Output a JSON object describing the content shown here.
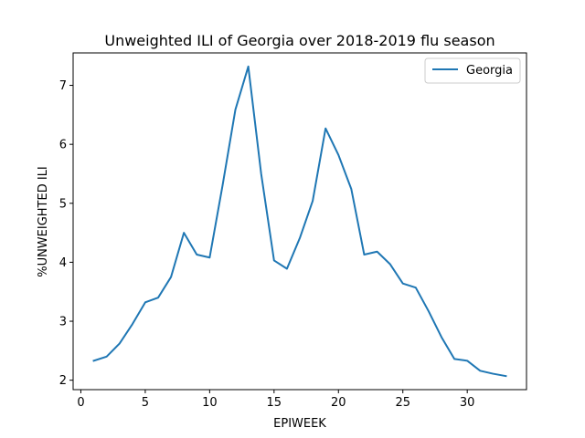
{
  "chart_data": {
    "type": "line",
    "title": "Unweighted ILI of Georgia over 2018-2019 flu season",
    "xlabel": "EPIWEEK",
    "ylabel": "%UNWEIGHTED ILI",
    "xlim": [
      -0.6,
      34.6
    ],
    "ylim": [
      1.84,
      7.55
    ],
    "xticks": [
      0,
      5,
      10,
      15,
      20,
      25,
      30
    ],
    "yticks": [
      2,
      3,
      4,
      5,
      6,
      7
    ],
    "grid": false,
    "legend_position": "top-right",
    "series": [
      {
        "name": "Georgia",
        "color": "#1f77b4",
        "x": [
          1,
          2,
          3,
          4,
          5,
          6,
          7,
          8,
          9,
          10,
          11,
          12,
          13,
          14,
          15,
          16,
          17,
          18,
          19,
          20,
          21,
          22,
          23,
          24,
          25,
          26,
          27,
          28,
          29,
          30,
          31,
          32,
          33
        ],
        "y": [
          2.33,
          2.4,
          2.62,
          2.95,
          3.32,
          3.4,
          3.75,
          4.5,
          4.13,
          4.08,
          5.3,
          6.59,
          7.32,
          5.5,
          4.03,
          3.89,
          4.41,
          5.04,
          6.27,
          5.82,
          5.24,
          4.13,
          4.18,
          3.97,
          3.64,
          3.57,
          3.17,
          2.73,
          2.36,
          2.33,
          2.16,
          2.11,
          2.07
        ]
      }
    ]
  }
}
